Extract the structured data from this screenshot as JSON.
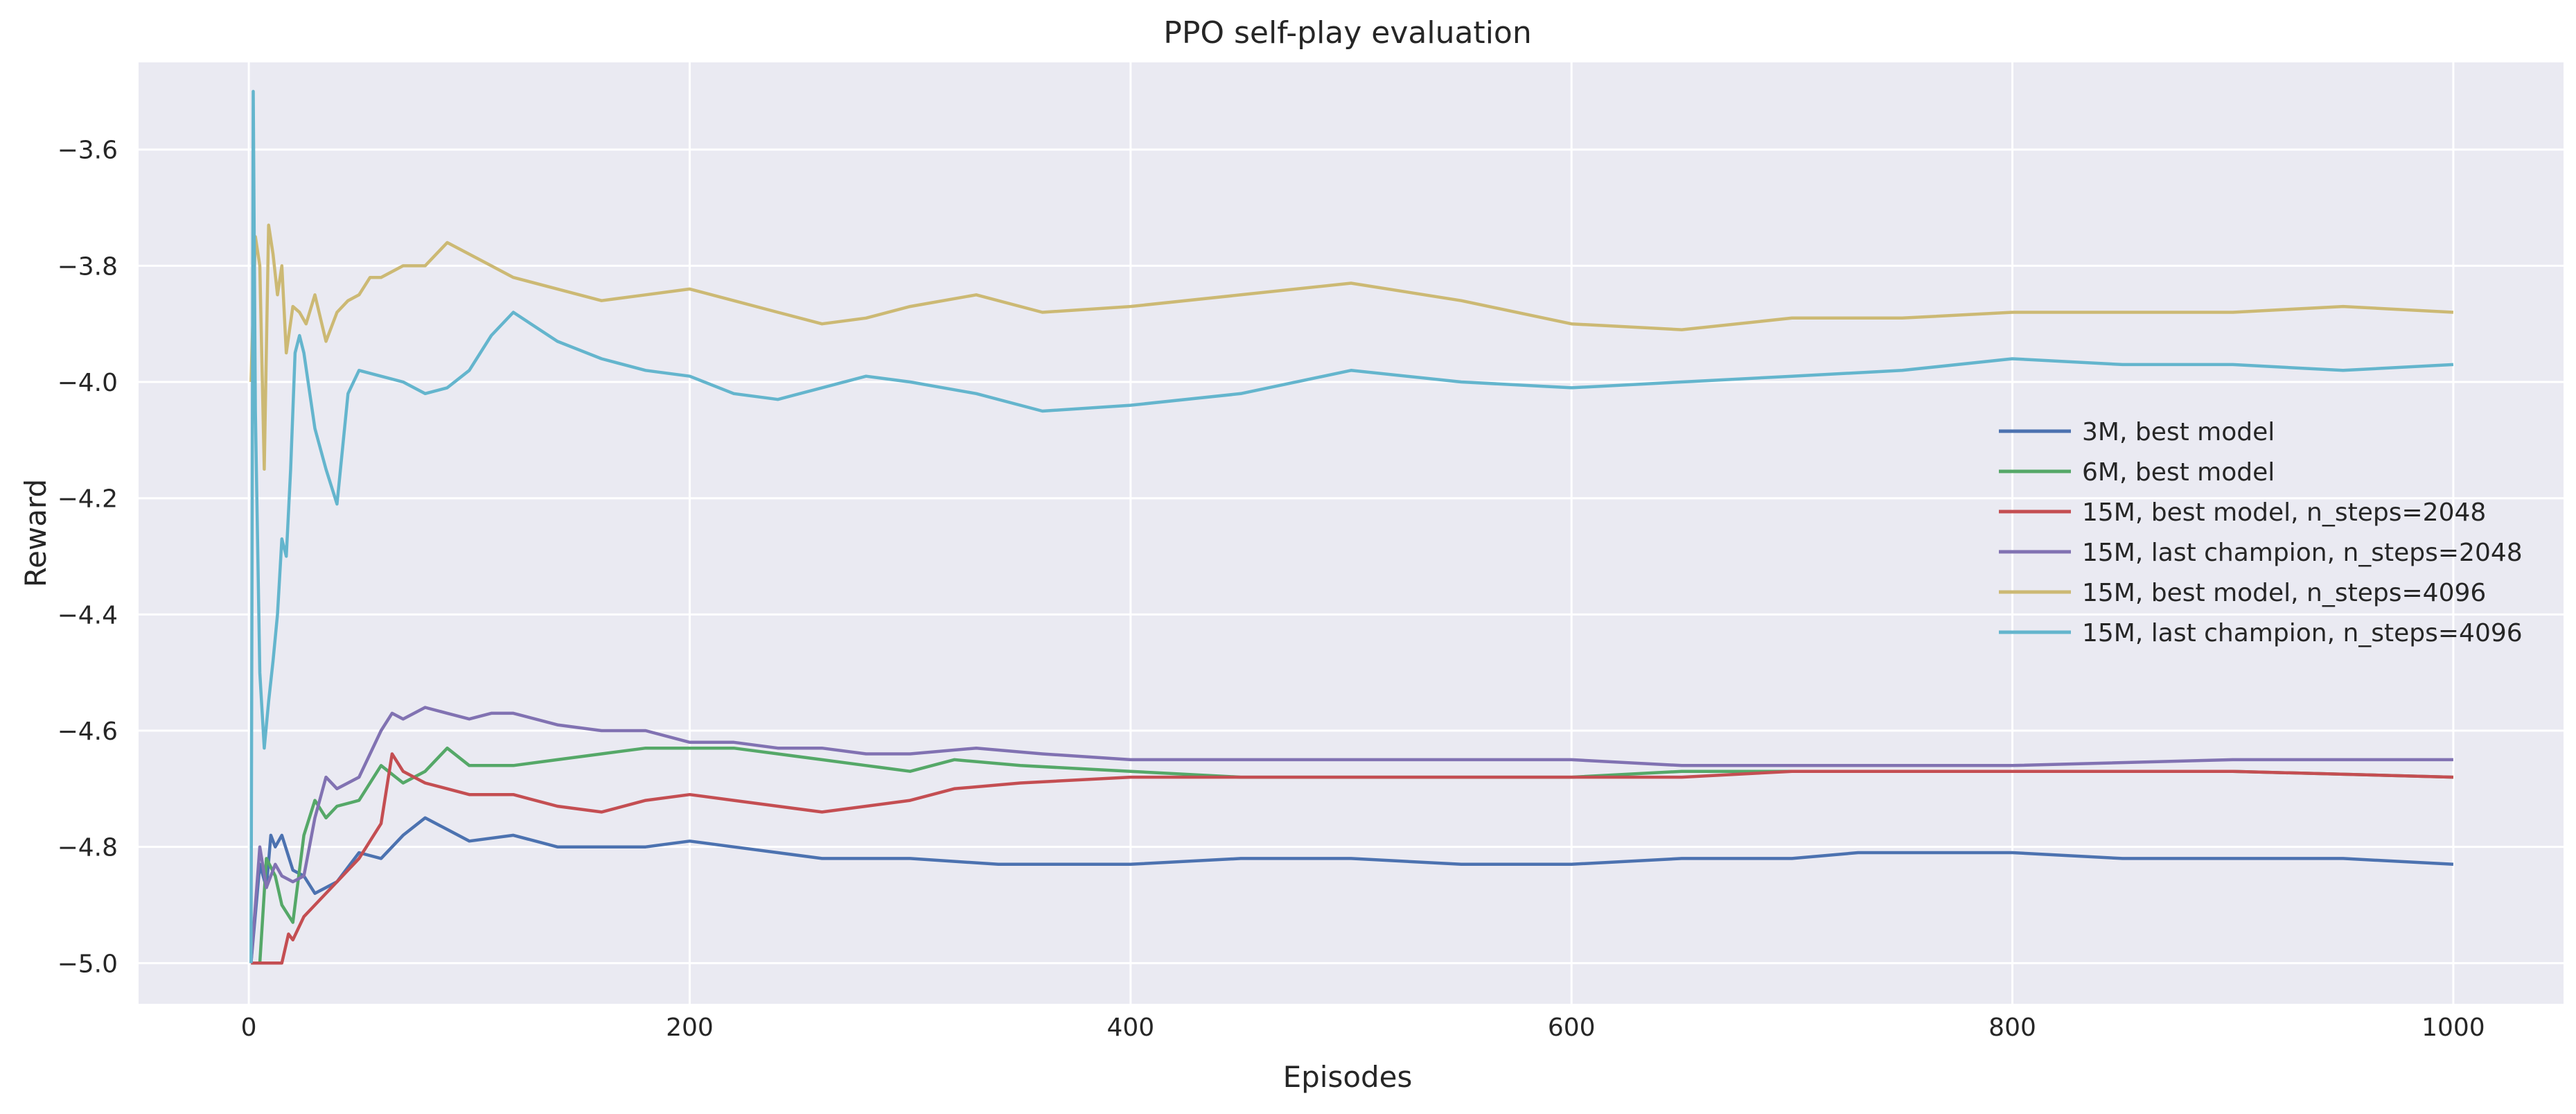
{
  "chart_data": {
    "type": "line",
    "title": "PPO self-play evaluation",
    "xlabel": "Episodes",
    "ylabel": "Reward",
    "xlim": [
      -50,
      1050
    ],
    "ylim": [
      -5.07,
      -3.45
    ],
    "xticks": [
      0,
      200,
      400,
      600,
      800,
      1000
    ],
    "xtick_labels": [
      "0",
      "200",
      "400",
      "600",
      "800",
      "1000"
    ],
    "yticks": [
      -5.0,
      -4.8,
      -4.6,
      -4.4,
      -4.2,
      -4.0,
      -3.8,
      -3.6
    ],
    "ytick_labels": [
      "−5.0",
      "−4.8",
      "−4.6",
      "−4.4",
      "−4.2",
      "−4.0",
      "−3.8",
      "−3.6"
    ],
    "grid": true,
    "legend_position": "center-right",
    "series": [
      {
        "name": "3M, best model",
        "color": "#4c72b0",
        "x": [
          1,
          5,
          8,
          10,
          12,
          15,
          20,
          25,
          30,
          40,
          50,
          60,
          70,
          80,
          90,
          100,
          120,
          140,
          160,
          180,
          200,
          220,
          240,
          260,
          280,
          300,
          340,
          380,
          400,
          450,
          500,
          550,
          600,
          650,
          700,
          730,
          760,
          800,
          850,
          900,
          950,
          1000
        ],
        "y": [
          -5.0,
          -4.83,
          -4.87,
          -4.78,
          -4.8,
          -4.78,
          -4.84,
          -4.85,
          -4.88,
          -4.86,
          -4.81,
          -4.82,
          -4.78,
          -4.75,
          -4.77,
          -4.79,
          -4.78,
          -4.8,
          -4.8,
          -4.8,
          -4.79,
          -4.8,
          -4.81,
          -4.82,
          -4.82,
          -4.82,
          -4.83,
          -4.83,
          -4.83,
          -4.82,
          -4.82,
          -4.83,
          -4.83,
          -4.82,
          -4.82,
          -4.81,
          -4.81,
          -4.81,
          -4.82,
          -4.82,
          -4.82,
          -4.83
        ]
      },
      {
        "name": "6M, best model",
        "color": "#55a868",
        "x": [
          1,
          5,
          8,
          12,
          15,
          20,
          25,
          30,
          35,
          40,
          50,
          60,
          70,
          80,
          90,
          100,
          120,
          140,
          160,
          180,
          200,
          220,
          240,
          260,
          280,
          300,
          320,
          350,
          400,
          450,
          500,
          550,
          600,
          650,
          700,
          800,
          900,
          1000
        ],
        "y": [
          -5.0,
          -5.0,
          -4.82,
          -4.85,
          -4.9,
          -4.93,
          -4.78,
          -4.72,
          -4.75,
          -4.73,
          -4.72,
          -4.66,
          -4.69,
          -4.67,
          -4.63,
          -4.66,
          -4.66,
          -4.65,
          -4.64,
          -4.63,
          -4.63,
          -4.63,
          -4.64,
          -4.65,
          -4.66,
          -4.67,
          -4.65,
          -4.66,
          -4.67,
          -4.68,
          -4.68,
          -4.68,
          -4.68,
          -4.67,
          -4.67,
          -4.67,
          -4.67,
          -4.68
        ]
      },
      {
        "name": "15M, best model, n_steps=2048",
        "color": "#c44e52",
        "x": [
          1,
          5,
          10,
          15,
          18,
          20,
          25,
          30,
          40,
          50,
          60,
          65,
          70,
          80,
          90,
          100,
          120,
          140,
          160,
          180,
          200,
          220,
          240,
          260,
          280,
          300,
          320,
          350,
          400,
          450,
          500,
          550,
          600,
          650,
          700,
          800,
          900,
          1000
        ],
        "y": [
          -5.0,
          -5.0,
          -5.0,
          -5.0,
          -4.95,
          -4.96,
          -4.92,
          -4.9,
          -4.86,
          -4.82,
          -4.76,
          -4.64,
          -4.67,
          -4.69,
          -4.7,
          -4.71,
          -4.71,
          -4.73,
          -4.74,
          -4.72,
          -4.71,
          -4.72,
          -4.73,
          -4.74,
          -4.73,
          -4.72,
          -4.7,
          -4.69,
          -4.68,
          -4.68,
          -4.68,
          -4.68,
          -4.68,
          -4.68,
          -4.67,
          -4.67,
          -4.67,
          -4.68
        ]
      },
      {
        "name": "15M, last champion, n_steps=2048",
        "color": "#8172b2",
        "x": [
          1,
          5,
          8,
          12,
          15,
          20,
          25,
          30,
          35,
          40,
          50,
          60,
          65,
          70,
          80,
          90,
          100,
          110,
          120,
          140,
          160,
          180,
          200,
          220,
          240,
          260,
          280,
          300,
          330,
          360,
          400,
          450,
          500,
          550,
          600,
          650,
          700,
          800,
          900,
          1000
        ],
        "y": [
          -5.0,
          -4.8,
          -4.87,
          -4.83,
          -4.85,
          -4.86,
          -4.85,
          -4.75,
          -4.68,
          -4.7,
          -4.68,
          -4.6,
          -4.57,
          -4.58,
          -4.56,
          -4.57,
          -4.58,
          -4.57,
          -4.57,
          -4.59,
          -4.6,
          -4.6,
          -4.62,
          -4.62,
          -4.63,
          -4.63,
          -4.64,
          -4.64,
          -4.63,
          -4.64,
          -4.65,
          -4.65,
          -4.65,
          -4.65,
          -4.65,
          -4.66,
          -4.66,
          -4.66,
          -4.65,
          -4.65
        ]
      },
      {
        "name": "15M, best model, n_steps=4096",
        "color": "#ccb974",
        "x": [
          1,
          3,
          5,
          7,
          9,
          11,
          13,
          15,
          17,
          20,
          23,
          26,
          30,
          35,
          40,
          45,
          50,
          55,
          60,
          70,
          80,
          90,
          100,
          110,
          120,
          140,
          160,
          180,
          200,
          220,
          240,
          260,
          280,
          300,
          330,
          360,
          400,
          450,
          500,
          550,
          600,
          650,
          700,
          750,
          800,
          850,
          900,
          950,
          1000
        ],
        "y": [
          -4.0,
          -3.75,
          -3.8,
          -4.15,
          -3.73,
          -3.78,
          -3.85,
          -3.8,
          -3.95,
          -3.87,
          -3.88,
          -3.9,
          -3.85,
          -3.93,
          -3.88,
          -3.86,
          -3.85,
          -3.82,
          -3.82,
          -3.8,
          -3.8,
          -3.76,
          -3.78,
          -3.8,
          -3.82,
          -3.84,
          -3.86,
          -3.85,
          -3.84,
          -3.86,
          -3.88,
          -3.9,
          -3.89,
          -3.87,
          -3.85,
          -3.88,
          -3.87,
          -3.85,
          -3.83,
          -3.86,
          -3.9,
          -3.91,
          -3.89,
          -3.89,
          -3.88,
          -3.88,
          -3.88,
          -3.87,
          -3.88
        ]
      },
      {
        "name": "15M, last champion, n_steps=4096",
        "color": "#64b5cd",
        "x": [
          1,
          2,
          3,
          5,
          7,
          9,
          11,
          13,
          15,
          17,
          19,
          21,
          23,
          25,
          30,
          35,
          40,
          45,
          50,
          60,
          70,
          80,
          90,
          100,
          110,
          120,
          140,
          160,
          180,
          200,
          220,
          240,
          260,
          280,
          300,
          330,
          360,
          400,
          450,
          500,
          550,
          600,
          650,
          700,
          750,
          800,
          850,
          900,
          950,
          1000
        ],
        "y": [
          -5.0,
          -3.5,
          -4.05,
          -4.5,
          -4.63,
          -4.55,
          -4.48,
          -4.4,
          -4.27,
          -4.3,
          -4.15,
          -3.95,
          -3.92,
          -3.95,
          -4.08,
          -4.15,
          -4.21,
          -4.02,
          -3.98,
          -3.99,
          -4.0,
          -4.02,
          -4.01,
          -3.98,
          -3.92,
          -3.88,
          -3.93,
          -3.96,
          -3.98,
          -3.99,
          -4.02,
          -4.03,
          -4.01,
          -3.99,
          -4.0,
          -4.02,
          -4.05,
          -4.04,
          -4.02,
          -3.98,
          -4.0,
          -4.01,
          -4.0,
          -3.99,
          -3.98,
          -3.96,
          -3.97,
          -3.97,
          -3.98,
          -3.97
        ]
      }
    ]
  }
}
